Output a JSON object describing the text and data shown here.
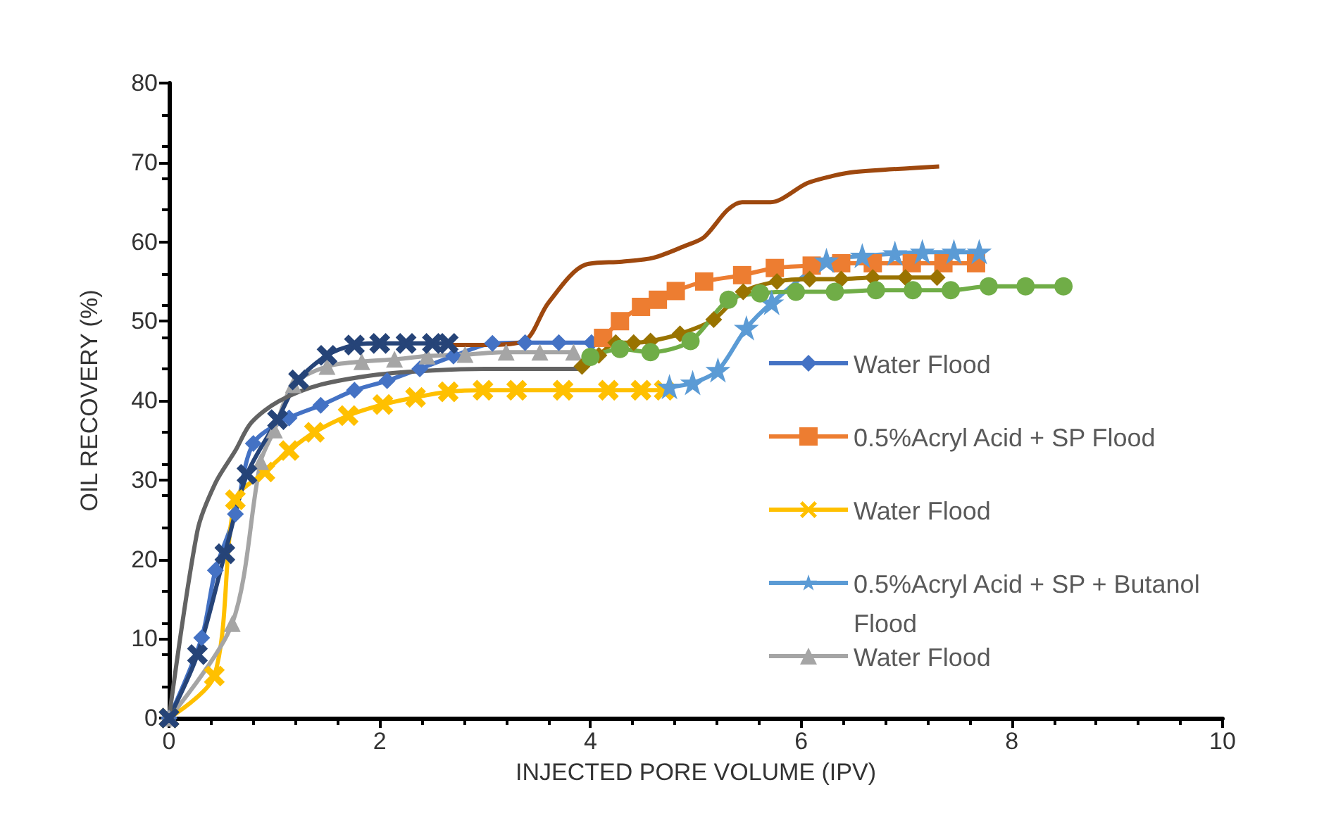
{
  "chart_data": {
    "type": "line",
    "xlabel": "INJECTED PORE VOLUME (IPV)",
    "ylabel": "OIL RECOVERY (%)",
    "xlim": [
      0,
      10
    ],
    "xticks": [
      0,
      2,
      4,
      6,
      8,
      10
    ],
    "ylim": [
      0,
      80
    ],
    "yticks": [
      0,
      10,
      20,
      30,
      40,
      50,
      60,
      70,
      80
    ],
    "grid": false,
    "legend": "right",
    "series": [
      {
        "name": "Water Flood",
        "color": "#4472c4",
        "marker": "diamond",
        "x": [
          0,
          0.31,
          0.44,
          0.63,
          0.8,
          1.14,
          1.44,
          1.76,
          2.07,
          2.38,
          2.7,
          3.07,
          3.38,
          3.7,
          4.01
        ],
        "values": [
          0,
          10.1,
          18.6,
          25.7,
          34.6,
          37.8,
          39.4,
          41.3,
          42.5,
          44,
          45.6,
          47.2,
          47.3,
          47.3,
          47.3
        ]
      },
      {
        "name": "0.5%Acryl Acid + SP Flood",
        "color": "#ed7d31",
        "marker": "square",
        "x": [
          4.12,
          4.28,
          4.48,
          4.64,
          4.81,
          5.08,
          5.44,
          5.75,
          6.1,
          6.38,
          6.68,
          7.05,
          7.35,
          7.66
        ],
        "values": [
          47.9,
          50,
          51.8,
          52.7,
          53.8,
          55,
          55.8,
          56.7,
          57,
          57.3,
          57.3,
          57.3,
          57.3,
          57.3
        ]
      },
      {
        "name": "Water Flood",
        "color": "#ffc000",
        "marker": "cross",
        "x": [
          0,
          0.43,
          0.63,
          0.91,
          1.14,
          1.38,
          1.7,
          2.03,
          2.34,
          2.65,
          2.98,
          3.3,
          3.74,
          4.17,
          4.48,
          4.7
        ],
        "values": [
          0,
          5.3,
          27.5,
          31,
          33.7,
          36,
          38.1,
          39.5,
          40.4,
          41.1,
          41.3,
          41.3,
          41.3,
          41.3,
          41.3,
          41.3
        ]
      },
      {
        "name": "0.5%Acryl Acid + SP + Butanol Flood",
        "color": "#5b9bd5",
        "marker": "star",
        "x": [
          4.75,
          4.97,
          5.21,
          5.48,
          5.72,
          6.24,
          6.58,
          6.89,
          7.15,
          7.45,
          7.69
        ],
        "values": [
          41.7,
          42.2,
          43.8,
          49.1,
          52.3,
          57.6,
          58.2,
          58.5,
          58.7,
          58.7,
          58.7
        ]
      },
      {
        "name": "Water Flood",
        "color": "#a5a5a5",
        "marker": "triangle",
        "x": [
          0,
          0.6,
          0.87,
          1.0,
          1.18,
          1.5,
          1.83,
          2.14,
          2.45,
          2.81,
          3.2,
          3.52,
          3.84
        ],
        "values": [
          0,
          11.9,
          32.3,
          36.3,
          42,
          44.3,
          44.9,
          45.2,
          45.6,
          45.8,
          46.1,
          46.1,
          46.1
        ]
      },
      {
        "color": "#264478",
        "marker": "cross",
        "x": [
          0,
          0.27,
          0.53,
          0.74,
          1.03,
          1.23,
          1.5,
          1.76,
          2.0,
          2.25,
          2.5,
          2.65
        ],
        "values": [
          0,
          8,
          20.7,
          30.7,
          37.6,
          42.6,
          45.7,
          47,
          47.2,
          47.2,
          47.2,
          47.2
        ]
      },
      {
        "color": "#9e480e",
        "marker": "none",
        "x": [
          2.63,
          3.0,
          3.37,
          3.6,
          3.95,
          4.3,
          4.6,
          4.9,
          5.08,
          5.3,
          5.44,
          5.71,
          6.06,
          6.3,
          6.51,
          7.31
        ],
        "values": [
          47,
          47,
          47.5,
          52.3,
          57.1,
          57.5,
          58,
          59.5,
          60.6,
          64,
          65,
          65,
          67.4,
          68.3,
          68.8,
          69.5
        ]
      },
      {
        "color": "#636363",
        "marker": "none",
        "x": [
          0,
          0.27,
          0.44,
          0.63,
          0.78,
          1.04,
          1.44,
          2,
          2.5,
          3,
          3.5,
          3.95
        ],
        "values": [
          0,
          23.6,
          29.6,
          33.7,
          37.2,
          39.9,
          42,
          43.3,
          43.8,
          44,
          44,
          44
        ]
      },
      {
        "color": "#997300",
        "marker": "diamond",
        "x": [
          3.92,
          4.08,
          4.24,
          4.41,
          4.57,
          4.85,
          5.17,
          5.45,
          5.77,
          6.08,
          6.38,
          6.68,
          6.99,
          7.29
        ],
        "values": [
          44.3,
          45.7,
          47.3,
          47.3,
          47.5,
          48.4,
          50.2,
          53.7,
          55,
          55.3,
          55.3,
          55.5,
          55.5,
          55.5
        ]
      },
      {
        "color": "#70ad47",
        "marker": "circle",
        "x": [
          4.0,
          4.28,
          4.57,
          4.95,
          5.31,
          5.61,
          5.95,
          6.32,
          6.71,
          7.06,
          7.42,
          7.78,
          8.13,
          8.49
        ],
        "values": [
          45.5,
          46.5,
          46.1,
          47.5,
          52.7,
          53.5,
          53.7,
          53.7,
          53.9,
          53.9,
          53.9,
          54.4,
          54.4,
          54.4
        ]
      }
    ]
  }
}
